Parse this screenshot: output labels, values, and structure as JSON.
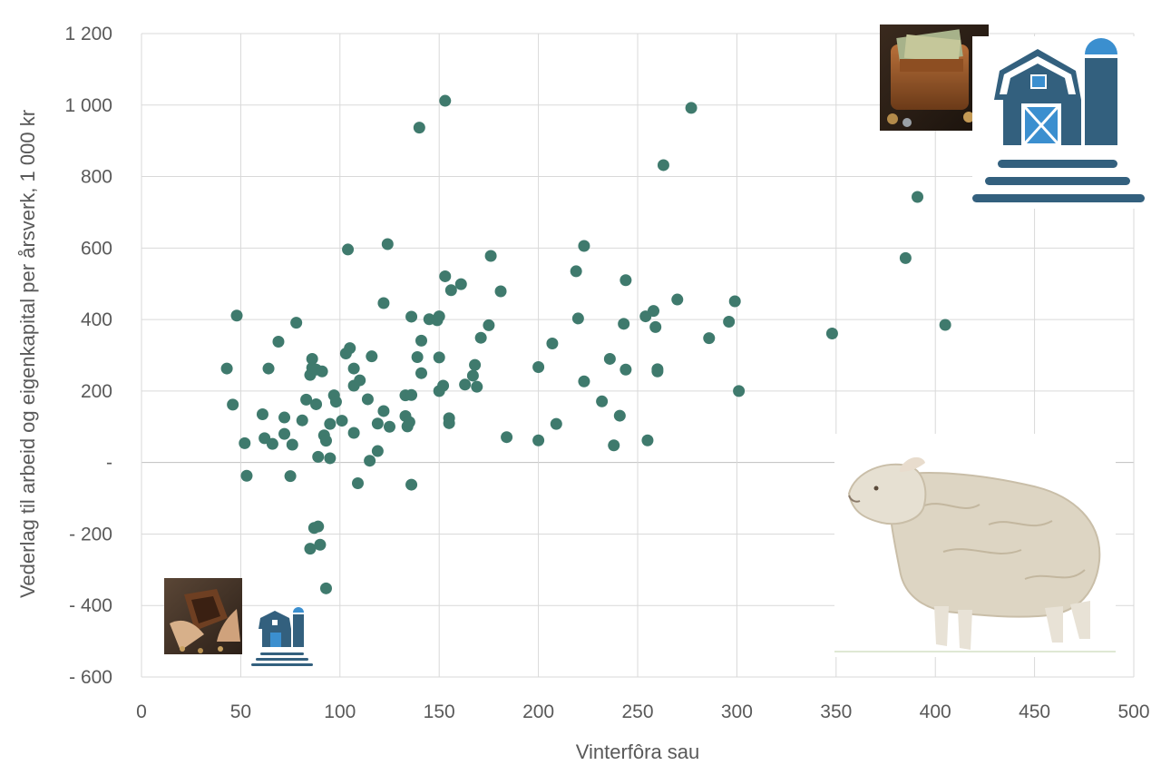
{
  "chart_data": {
    "type": "scatter",
    "title": "",
    "xlabel": "Vinterfôra sau",
    "ylabel": "Vederlag til arbeid og eigenkapital per årsverk, 1 000 kr",
    "xlim": [
      0,
      500
    ],
    "ylim": [
      -600,
      1200
    ],
    "x_ticks": [
      0,
      50,
      100,
      150,
      200,
      250,
      300,
      350,
      400,
      450,
      500
    ],
    "x_tick_labels": [
      "0",
      "50",
      "100",
      "150",
      "200",
      "250",
      "300",
      "350",
      "400",
      "450",
      "500"
    ],
    "y_ticks": [
      -600,
      -400,
      -200,
      0,
      200,
      400,
      600,
      800,
      1000,
      1200
    ],
    "y_tick_labels": [
      "- 600",
      "- 400",
      "- 200",
      "-",
      "200",
      "400",
      "600",
      "800",
      "1 000",
      "1 200"
    ],
    "grid": true,
    "legend": "none",
    "marker_color": "#3f7a6d",
    "points": [
      [
        43,
        263
      ],
      [
        46,
        162
      ],
      [
        48,
        411
      ],
      [
        52,
        54
      ],
      [
        53,
        -37
      ],
      [
        61,
        135
      ],
      [
        62,
        68
      ],
      [
        64,
        263
      ],
      [
        66,
        52
      ],
      [
        69,
        338
      ],
      [
        72,
        126
      ],
      [
        72,
        80
      ],
      [
        75,
        -38
      ],
      [
        76,
        50
      ],
      [
        78,
        391
      ],
      [
        81,
        118
      ],
      [
        83,
        176
      ],
      [
        85,
        -241
      ],
      [
        85,
        245
      ],
      [
        86,
        290
      ],
      [
        86,
        265
      ],
      [
        87,
        -183
      ],
      [
        88,
        163
      ],
      [
        88,
        260
      ],
      [
        89,
        -179
      ],
      [
        89,
        16
      ],
      [
        90,
        -230
      ],
      [
        91,
        255
      ],
      [
        92,
        76
      ],
      [
        93,
        61
      ],
      [
        93,
        -352
      ],
      [
        95,
        108
      ],
      [
        95,
        12
      ],
      [
        97,
        188
      ],
      [
        98,
        170
      ],
      [
        101,
        117
      ],
      [
        103,
        305
      ],
      [
        104,
        596
      ],
      [
        105,
        320
      ],
      [
        107,
        215
      ],
      [
        107,
        263
      ],
      [
        107,
        83
      ],
      [
        109,
        -58
      ],
      [
        110,
        230
      ],
      [
        114,
        177
      ],
      [
        115,
        5
      ],
      [
        116,
        297
      ],
      [
        119,
        32
      ],
      [
        119,
        109
      ],
      [
        122,
        144
      ],
      [
        122,
        446
      ],
      [
        124,
        611
      ],
      [
        125,
        100
      ],
      [
        133,
        188
      ],
      [
        133,
        130
      ],
      [
        134,
        101
      ],
      [
        135,
        113
      ],
      [
        136,
        408
      ],
      [
        136,
        189
      ],
      [
        136,
        -62
      ],
      [
        139,
        295
      ],
      [
        140,
        937
      ],
      [
        141,
        341
      ],
      [
        141,
        250
      ],
      [
        145,
        401
      ],
      [
        149,
        398
      ],
      [
        150,
        409
      ],
      [
        150,
        294
      ],
      [
        150,
        200
      ],
      [
        152,
        215
      ],
      [
        153,
        1012
      ],
      [
        153,
        521
      ],
      [
        155,
        124
      ],
      [
        155,
        110
      ],
      [
        156,
        482
      ],
      [
        161,
        499
      ],
      [
        163,
        218
      ],
      [
        167,
        243
      ],
      [
        168,
        273
      ],
      [
        169,
        212
      ],
      [
        171,
        349
      ],
      [
        175,
        384
      ],
      [
        176,
        578
      ],
      [
        181,
        479
      ],
      [
        184,
        71
      ],
      [
        200,
        267
      ],
      [
        200,
        62
      ],
      [
        207,
        333
      ],
      [
        209,
        108
      ],
      [
        219,
        535
      ],
      [
        220,
        403
      ],
      [
        223,
        606
      ],
      [
        223,
        227
      ],
      [
        232,
        171
      ],
      [
        236,
        290
      ],
      [
        238,
        48
      ],
      [
        241,
        131
      ],
      [
        243,
        388
      ],
      [
        244,
        510
      ],
      [
        244,
        260
      ],
      [
        254,
        409
      ],
      [
        255,
        62
      ],
      [
        258,
        424
      ],
      [
        259,
        379
      ],
      [
        260,
        261
      ],
      [
        260,
        255
      ],
      [
        263,
        832
      ],
      [
        270,
        456
      ],
      [
        277,
        992
      ],
      [
        286,
        348
      ],
      [
        296,
        394
      ],
      [
        299,
        451
      ],
      [
        301,
        200
      ],
      [
        348,
        361
      ],
      [
        385,
        572
      ],
      [
        391,
        743
      ],
      [
        405,
        385
      ]
    ]
  },
  "images": {
    "wallet_full": "wallet-full-of-money-photo",
    "farm_large": "barn-with-silo-icon",
    "farm_small": "barn-with-silo-icon",
    "wallet_empty": "empty-wallet-in-hands-photo",
    "sheep": "sheep-illustration"
  },
  "colors": {
    "farm_icon": "#33607e",
    "farm_accent": "#3b8fcf",
    "gridline": "#d9d9d9",
    "text": "#595959"
  }
}
